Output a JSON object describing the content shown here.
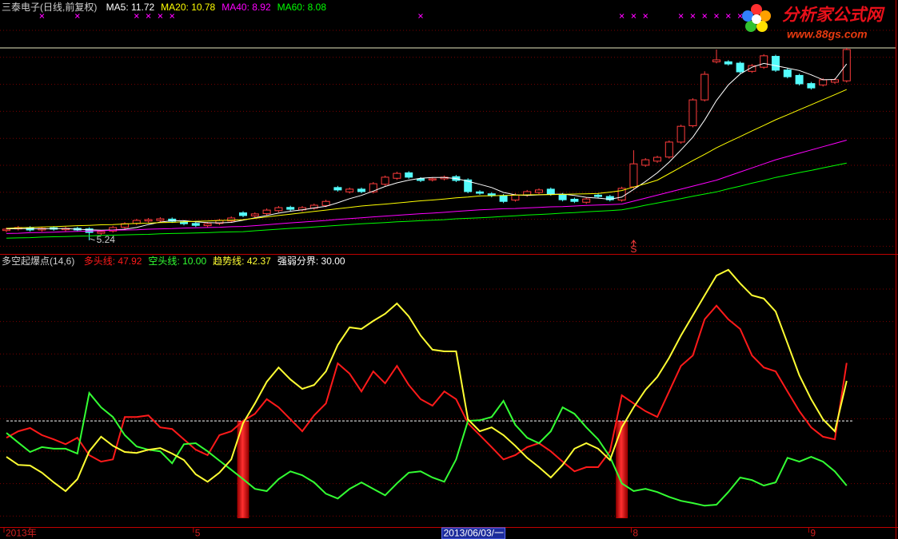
{
  "logo": {
    "name": "分析家公式网",
    "url": "www.88gs.com"
  },
  "chart_data": [
    {
      "type": "candlestick",
      "title": "三泰电子(日线,前复权)",
      "up_color": "#ff3c3c",
      "down_color": "#54fcfc",
      "ylim": [
        4.74,
        12.31
      ],
      "open": [
        5.6,
        5.66,
        5.7,
        5.62,
        5.7,
        5.63,
        5.68,
        5.66,
        5.5,
        5.58,
        5.72,
        5.86,
        5.95,
        5.97,
        6.02,
        5.92,
        5.86,
        5.78,
        5.86,
        5.95,
        6.25,
        6.14,
        6.22,
        6.33,
        6.45,
        6.36,
        6.42,
        6.52,
        7.18,
        7.02,
        7.12,
        7.02,
        7.3,
        7.52,
        7.72,
        7.5,
        7.46,
        7.5,
        7.58,
        7.46,
        7.02,
        6.95,
        6.88,
        6.72,
        6.9,
        7.0,
        7.12,
        6.92,
        6.75,
        6.64,
        6.9,
        6.85,
        6.72,
        7.2,
        8.0,
        8.15,
        8.3,
        8.85,
        9.45,
        10.4,
        11.8,
        11.8,
        11.75,
        11.45,
        11.6,
        12.0,
        11.5,
        11.3,
        11.0,
        10.95,
        11.05,
        11.1
      ],
      "high": [
        5.71,
        5.77,
        5.76,
        5.74,
        5.76,
        5.74,
        5.74,
        5.72,
        5.62,
        5.77,
        5.91,
        6.03,
        6.06,
        6.09,
        6.08,
        5.98,
        5.92,
        5.91,
        6.03,
        6.12,
        6.31,
        6.27,
        6.41,
        6.5,
        6.51,
        6.5,
        6.59,
        6.73,
        7.24,
        7.18,
        7.18,
        7.38,
        7.62,
        7.76,
        7.78,
        7.56,
        7.56,
        7.62,
        7.64,
        7.52,
        7.08,
        7.01,
        6.94,
        6.97,
        7.09,
        7.15,
        7.18,
        6.98,
        6.81,
        6.82,
        6.96,
        6.91,
        7.21,
        8.55,
        8.26,
        8.35,
        8.91,
        9.49,
        10.46,
        11.45,
        12.25,
        11.86,
        11.81,
        11.72,
        12.08,
        12.06,
        11.56,
        11.36,
        11.06,
        11.2,
        11.2,
        12.31
      ],
      "low": [
        5.54,
        5.6,
        5.56,
        5.56,
        5.59,
        5.57,
        5.56,
        5.24,
        5.44,
        5.52,
        5.66,
        5.8,
        5.89,
        5.91,
        5.88,
        5.79,
        5.73,
        5.72,
        5.8,
        5.89,
        6.09,
        6.08,
        6.16,
        6.27,
        6.32,
        6.3,
        6.36,
        6.46,
        7.03,
        6.96,
        6.97,
        6.96,
        7.24,
        7.46,
        7.5,
        7.38,
        7.4,
        7.44,
        7.38,
        6.97,
        6.91,
        6.82,
        6.61,
        6.66,
        6.84,
        6.94,
        6.88,
        6.67,
        6.61,
        6.58,
        6.79,
        6.67,
        6.66,
        7.14,
        7.94,
        8.09,
        8.24,
        8.79,
        9.39,
        10.34,
        11.74,
        11.66,
        11.37,
        11.39,
        11.54,
        11.43,
        11.19,
        10.93,
        10.78,
        10.89,
        10.99,
        11.04
      ],
      "close": [
        5.65,
        5.71,
        5.62,
        5.68,
        5.65,
        5.68,
        5.62,
        5.53,
        5.56,
        5.71,
        5.85,
        5.97,
        6.0,
        6.03,
        5.94,
        5.85,
        5.79,
        5.85,
        5.97,
        6.06,
        6.15,
        6.21,
        6.35,
        6.44,
        6.38,
        6.44,
        6.53,
        6.67,
        7.09,
        7.12,
        7.03,
        7.32,
        7.56,
        7.7,
        7.56,
        7.44,
        7.5,
        7.56,
        7.44,
        7.03,
        6.97,
        6.88,
        6.67,
        6.91,
        7.03,
        7.09,
        6.94,
        6.73,
        6.67,
        6.76,
        6.85,
        6.73,
        7.15,
        8.05,
        8.2,
        8.29,
        8.85,
        9.43,
        10.4,
        11.34,
        11.87,
        11.72,
        11.43,
        11.66,
        12.02,
        11.49,
        11.25,
        10.99,
        10.84,
        11.14,
        11.14,
        12.25
      ],
      "series": [
        {
          "name": "MA5",
          "color": "#ffffff",
          "legend_label": "11.72",
          "values": [
            5.66,
            5.67,
            5.67,
            5.66,
            5.67,
            5.67,
            5.65,
            5.63,
            5.61,
            5.62,
            5.65,
            5.71,
            5.82,
            5.91,
            5.96,
            5.96,
            5.92,
            5.89,
            5.88,
            5.9,
            5.98,
            6.07,
            6.15,
            6.24,
            6.31,
            6.36,
            6.43,
            6.49,
            6.62,
            6.77,
            6.89,
            7.05,
            7.22,
            7.35,
            7.45,
            7.52,
            7.55,
            7.55,
            7.51,
            7.41,
            7.3,
            7.18,
            7.0,
            6.91,
            6.89,
            6.91,
            6.93,
            6.94,
            6.89,
            6.82,
            6.79,
            6.75,
            6.83,
            7.11,
            7.4,
            7.72,
            8.11,
            8.56,
            9.03,
            9.66,
            10.38,
            10.95,
            11.35,
            11.6,
            11.74,
            11.66,
            11.57,
            11.48,
            11.32,
            11.14,
            11.15,
            11.72
          ]
        },
        {
          "name": "MA20",
          "color": "#ffff00",
          "legend_label": "10.78",
          "values": [
            5.68,
            5.7,
            5.71,
            5.73,
            5.74,
            5.76,
            5.78,
            5.79,
            5.81,
            5.82,
            5.84,
            5.86,
            5.87,
            5.89,
            5.9,
            5.92,
            5.94,
            5.95,
            5.97,
            5.98,
            6.0,
            6.05,
            6.1,
            6.15,
            6.2,
            6.25,
            6.3,
            6.35,
            6.4,
            6.45,
            6.5,
            6.54,
            6.57,
            6.61,
            6.65,
            6.69,
            6.72,
            6.76,
            6.8,
            6.83,
            6.87,
            6.88,
            6.89,
            6.9,
            6.91,
            6.92,
            6.92,
            6.93,
            6.94,
            6.95,
            6.96,
            7.01,
            7.07,
            7.2,
            7.32,
            7.45,
            7.69,
            7.93,
            8.17,
            8.4,
            8.64,
            8.85,
            9.05,
            9.26,
            9.46,
            9.67,
            9.85,
            10.04,
            10.22,
            10.41,
            10.59,
            10.78
          ]
        },
        {
          "name": "MA40",
          "color": "#ff00ff",
          "legend_label": "8.92",
          "values": [
            5.49,
            5.5,
            5.52,
            5.53,
            5.54,
            5.56,
            5.57,
            5.58,
            5.59,
            5.61,
            5.62,
            5.63,
            5.65,
            5.66,
            5.67,
            5.69,
            5.7,
            5.71,
            5.72,
            5.74,
            5.75,
            5.78,
            5.81,
            5.85,
            5.88,
            5.91,
            5.94,
            5.97,
            6.01,
            6.04,
            6.07,
            6.1,
            6.13,
            6.16,
            6.19,
            6.22,
            6.24,
            6.27,
            6.3,
            6.33,
            6.36,
            6.38,
            6.4,
            6.41,
            6.43,
            6.45,
            6.47,
            6.48,
            6.5,
            6.52,
            6.54,
            6.55,
            6.57,
            6.68,
            6.79,
            6.9,
            7.01,
            7.12,
            7.23,
            7.34,
            7.45,
            7.6,
            7.75,
            7.9,
            8.05,
            8.2,
            8.32,
            8.44,
            8.56,
            8.68,
            8.8,
            8.92
          ]
        },
        {
          "name": "MA60",
          "color": "#00ff00",
          "legend_label": "8.08",
          "values": [
            5.32,
            5.33,
            5.34,
            5.36,
            5.37,
            5.38,
            5.39,
            5.4,
            5.42,
            5.43,
            5.44,
            5.45,
            5.46,
            5.48,
            5.49,
            5.5,
            5.51,
            5.52,
            5.54,
            5.55,
            5.56,
            5.59,
            5.62,
            5.65,
            5.68,
            5.7,
            5.73,
            5.76,
            5.79,
            5.82,
            5.85,
            5.87,
            5.89,
            5.92,
            5.94,
            5.96,
            5.98,
            6.0,
            6.03,
            6.05,
            6.07,
            6.09,
            6.12,
            6.14,
            6.17,
            6.19,
            6.21,
            6.24,
            6.26,
            6.29,
            6.31,
            6.33,
            6.36,
            6.44,
            6.53,
            6.61,
            6.69,
            6.77,
            6.86,
            6.94,
            7.02,
            7.13,
            7.23,
            7.34,
            7.44,
            7.55,
            7.64,
            7.73,
            7.81,
            7.9,
            7.99,
            8.08
          ]
        }
      ],
      "low_annotation": {
        "label": "5.24",
        "value": 5.24
      },
      "signals": [
        {
          "label": "S",
          "index": 53,
          "color": "#ff3c3c"
        }
      ],
      "markers": {
        "color": "#ff00ff",
        "indices": [
          3,
          6,
          11,
          12,
          13,
          14,
          35,
          52,
          53,
          54,
          57,
          58,
          59,
          60,
          61,
          62
        ]
      }
    },
    {
      "type": "line",
      "title": "多空起爆点(14,6)",
      "ylim": [
        -2.8,
        81.6
      ],
      "categories": [
        "2013年",
        null,
        null,
        null,
        null,
        null,
        null,
        null,
        null,
        null,
        null,
        null,
        null,
        null,
        null,
        null,
        "5",
        null,
        null,
        null,
        null,
        null,
        null,
        null,
        null,
        null,
        null,
        null,
        null,
        null,
        null,
        null,
        null,
        null,
        null,
        null,
        null,
        "2013/06/03/一",
        null,
        null,
        null,
        null,
        null,
        null,
        null,
        null,
        null,
        null,
        null,
        null,
        null,
        null,
        null,
        "8",
        null,
        null,
        null,
        null,
        null,
        null,
        null,
        null,
        null,
        null,
        null,
        null,
        null,
        null,
        "9",
        null,
        null,
        null
      ],
      "highlight_category": 37,
      "series": [
        {
          "name": "多头线",
          "color": "#ff1a1a",
          "legend_label": "47.92",
          "values": [
            24.8,
            26.8,
            27.8,
            25.6,
            24.3,
            22.8,
            24.8,
            19.4,
            17.4,
            18.1,
            31.2,
            31.2,
            31.7,
            28.0,
            27.5,
            24.3,
            21.1,
            19.4,
            25.6,
            26.8,
            30.0,
            32.2,
            36.7,
            34.2,
            30.5,
            26.8,
            31.7,
            35.4,
            47.8,
            44.6,
            39.1,
            45.3,
            41.6,
            47.0,
            41.1,
            36.7,
            34.7,
            39.1,
            36.7,
            29.3,
            25.6,
            21.9,
            18.1,
            19.4,
            21.9,
            23.1,
            20.6,
            17.4,
            14.4,
            15.7,
            15.7,
            20.6,
            37.9,
            35.4,
            33.0,
            31.2,
            39.1,
            47.0,
            50.2,
            61.4,
            65.6,
            61.4,
            58.4,
            50.2,
            46.5,
            45.3,
            39.1,
            33.0,
            28.0,
            25.1,
            24.3,
            47.92
          ]
        },
        {
          "name": "空头线",
          "color": "#33ff33",
          "legend_label": "10.00",
          "values": [
            26.3,
            23.3,
            20.4,
            21.9,
            21.4,
            21.4,
            19.9,
            38.6,
            34.2,
            31.2,
            25.6,
            22.1,
            21.1,
            20.6,
            16.9,
            22.8,
            23.1,
            20.6,
            17.7,
            14.9,
            12.0,
            9.0,
            8.3,
            12.0,
            14.4,
            13.2,
            11.0,
            7.5,
            6.0,
            9.0,
            11.0,
            9.0,
            7.0,
            10.7,
            14.0,
            14.4,
            12.5,
            11.2,
            18.1,
            30.0,
            30.2,
            31.2,
            36.2,
            28.8,
            24.8,
            23.1,
            26.8,
            34.2,
            32.2,
            28.0,
            24.3,
            18.9,
            10.7,
            8.3,
            9.0,
            8.0,
            6.5,
            5.3,
            4.6,
            3.8,
            4.1,
            8.0,
            12.5,
            11.7,
            10.0,
            11.0,
            18.6,
            17.4,
            18.9,
            17.4,
            14.4,
            10
          ]
        },
        {
          "name": "趋势线",
          "color": "#ffff33",
          "legend_label": "42.37",
          "values": [
            18.9,
            16.4,
            16.2,
            14.0,
            11.0,
            8.3,
            12.0,
            20.6,
            25.1,
            22.3,
            20.4,
            20.1,
            21.1,
            21.6,
            19.9,
            17.9,
            13.5,
            11.2,
            14.0,
            18.1,
            29.3,
            35.4,
            42.1,
            46.5,
            42.8,
            39.9,
            41.1,
            45.3,
            53.5,
            58.9,
            58.4,
            60.9,
            63.1,
            66.3,
            62.3,
            56.4,
            52.0,
            51.5,
            51.5,
            30.5,
            26.8,
            28.0,
            25.6,
            22.3,
            18.6,
            15.7,
            12.5,
            16.4,
            21.4,
            23.1,
            21.4,
            17.9,
            28.0,
            34.2,
            39.6,
            43.6,
            49.5,
            56.4,
            62.6,
            68.8,
            74.9,
            76.7,
            72.5,
            68.8,
            67.8,
            63.8,
            54.0,
            44.1,
            36.7,
            30.5,
            26.8,
            42.37
          ]
        }
      ],
      "hline": {
        "name": "强弱分界",
        "value": 30,
        "label": "30.00",
        "color": "#ffffff"
      },
      "bars": {
        "color": "#e00000",
        "values": [
          null,
          null,
          null,
          null,
          null,
          null,
          null,
          null,
          null,
          null,
          null,
          null,
          null,
          null,
          null,
          null,
          null,
          null,
          null,
          null,
          30,
          null,
          null,
          null,
          null,
          null,
          null,
          null,
          null,
          null,
          null,
          null,
          null,
          null,
          null,
          null,
          null,
          null,
          null,
          null,
          null,
          null,
          null,
          null,
          null,
          null,
          null,
          null,
          null,
          null,
          null,
          null,
          30,
          null,
          null,
          null,
          null,
          null,
          null,
          null,
          null,
          null,
          null,
          null,
          null,
          null,
          null,
          null,
          null,
          null,
          null,
          null
        ]
      }
    }
  ]
}
